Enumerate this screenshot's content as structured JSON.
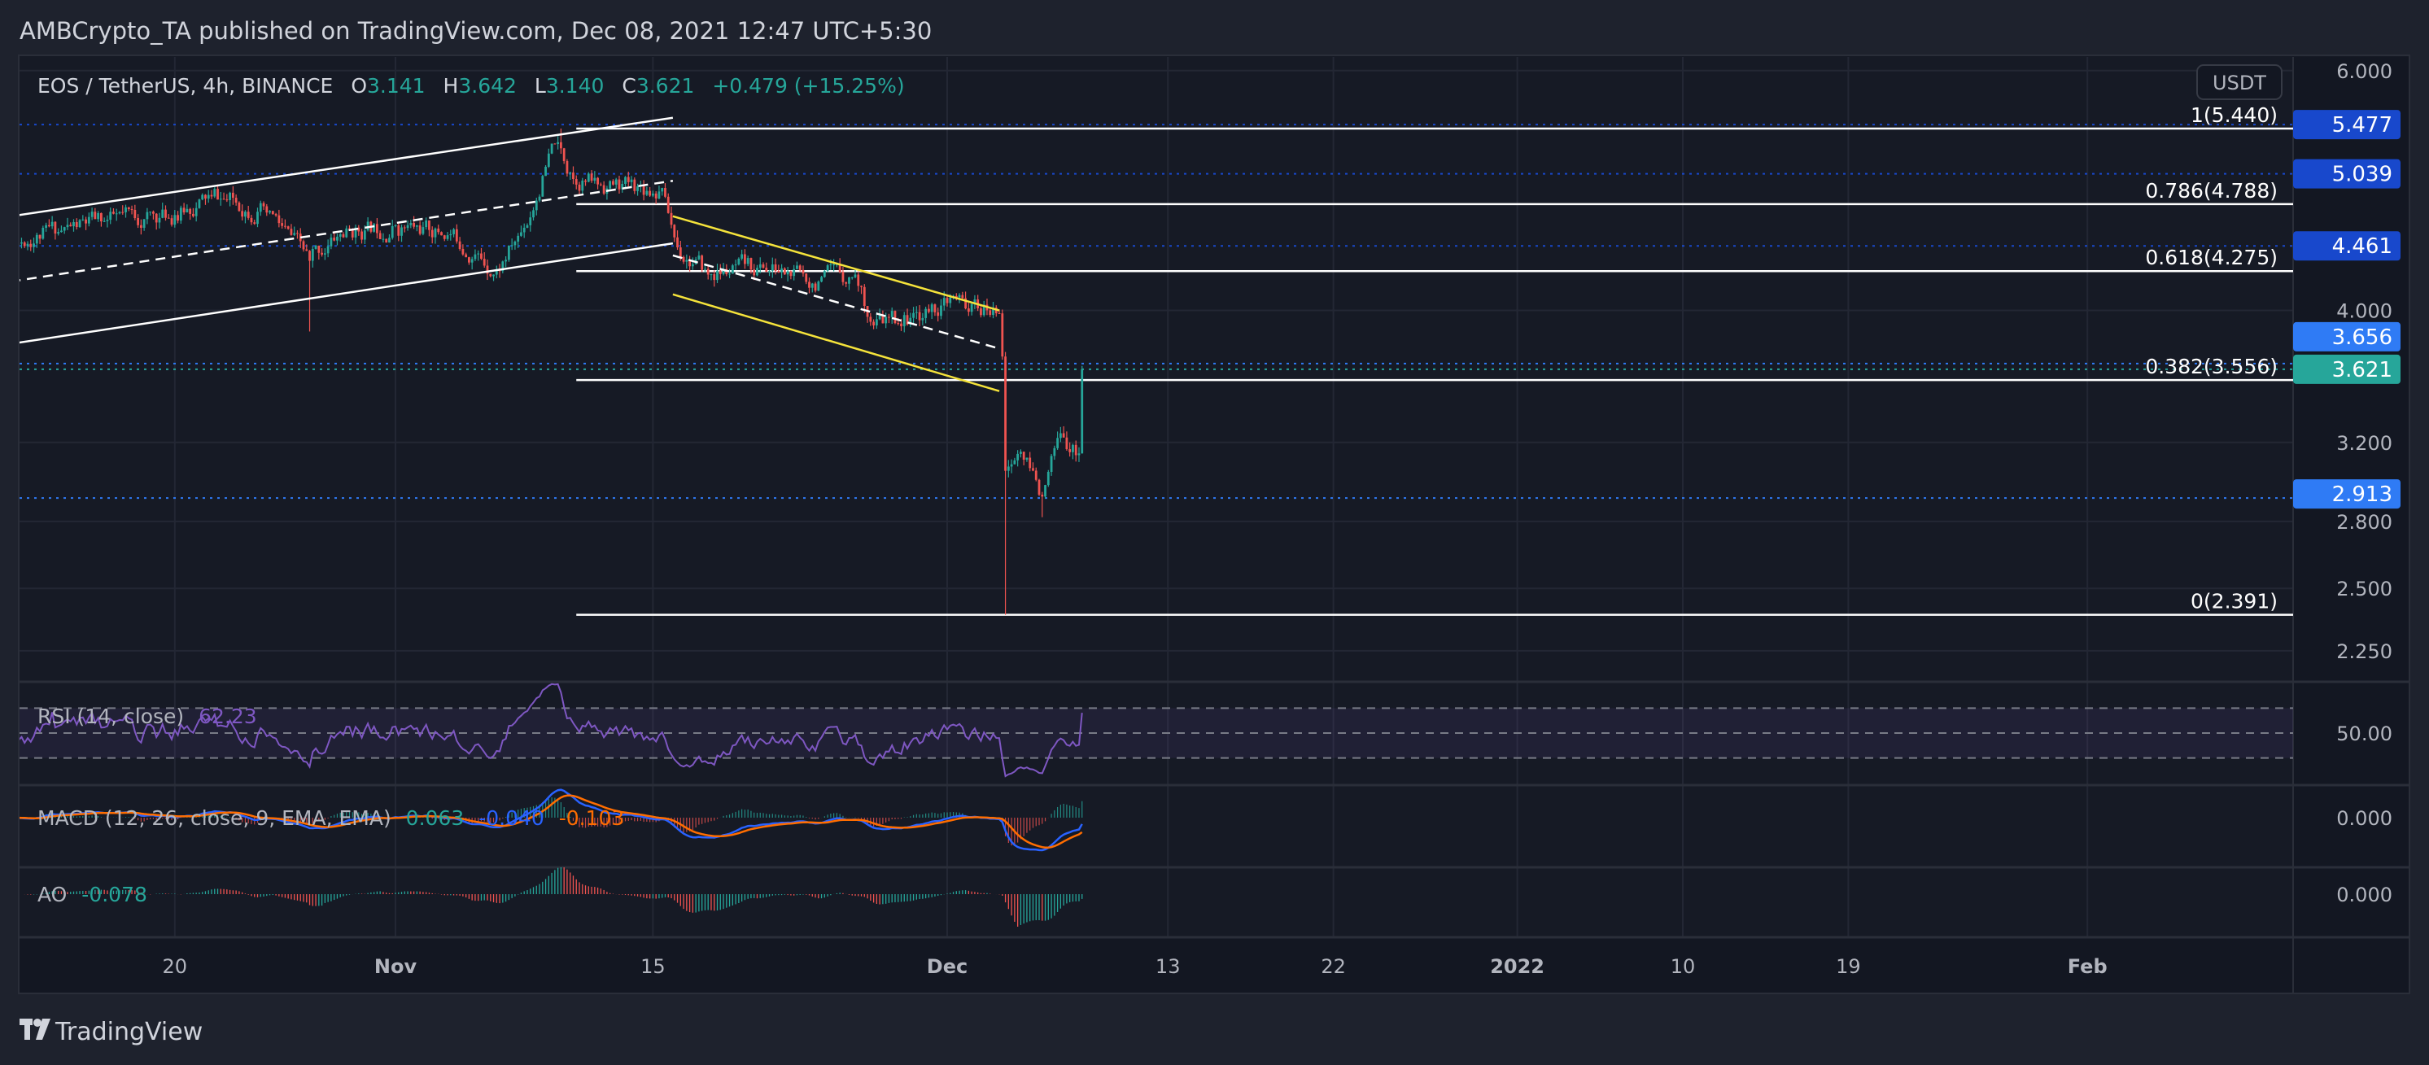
{
  "header": {
    "publisher_line": "AMBCrypto_TA published on TradingView.com, Dec 08, 2021 12:47 UTC+5:30"
  },
  "legend": {
    "symbol": "EOS / TetherUS, 4h, BINANCE",
    "o_label": "O",
    "o": "3.141",
    "h_label": "H",
    "h": "3.642",
    "l_label": "L",
    "l": "3.140",
    "c_label": "C",
    "c": "3.621",
    "change": "+0.479 (+15.25%)"
  },
  "currency_button": "USDT",
  "indicators": {
    "rsi": {
      "label": "RSI (14, close)",
      "value": "62.23",
      "axis": "50.00"
    },
    "macd": {
      "label": "MACD (12, 26, close, 9, EMA, EMA)",
      "hist": "0.063",
      "macd": "-0.040",
      "signal": "-0.103",
      "axis": "0.000"
    },
    "ao": {
      "label": "AO",
      "value": "-0.078",
      "axis": "0.000"
    }
  },
  "footer": {
    "logo_text": "TradingView"
  },
  "colors": {
    "up": "#26a69a",
    "down": "#ef5350",
    "alert_dark": "#1848cc",
    "alert_light": "#2f7bf5",
    "rsi": "#7e57c2",
    "macd": "#2962ff",
    "signal": "#ff6d00",
    "channel_yellow": "#f5e33b"
  },
  "chart_data": {
    "type": "candlestick",
    "symbol": "EOS/USDT",
    "interval": "4h",
    "scale": "log",
    "price_ticks": [
      "6.000",
      "4.000",
      "3.200",
      "2.800",
      "2.500",
      "2.250"
    ],
    "time_ticks": [
      {
        "label": "20",
        "date": "2021-10-20"
      },
      {
        "label": "Nov",
        "date": "2021-11-01"
      },
      {
        "label": "15",
        "date": "2021-11-15"
      },
      {
        "label": "Dec",
        "date": "2021-12-01"
      },
      {
        "label": "13",
        "date": "2021-12-13"
      },
      {
        "label": "22",
        "date": "2021-12-22"
      },
      {
        "label": "2022",
        "date": "2022-01-01"
      },
      {
        "label": "10",
        "date": "2022-01-10"
      },
      {
        "label": "19",
        "date": "2022-01-19"
      },
      {
        "label": "Feb",
        "date": "2022-02-01"
      }
    ],
    "waypoints": [
      {
        "t": "2021-10-11T00:00",
        "close": 4.5
      },
      {
        "t": "2021-10-16T00:00",
        "close": 4.65
      },
      {
        "t": "2021-10-20T00:00",
        "close": 4.7
      },
      {
        "t": "2021-10-22T00:00",
        "close": 4.85
      },
      {
        "t": "2021-10-25T00:00",
        "close": 4.72
      },
      {
        "t": "2021-10-27T08:00",
        "close": 4.35
      },
      {
        "t": "2021-10-29T00:00",
        "close": 4.55
      },
      {
        "t": "2021-11-01T00:00",
        "close": 4.62
      },
      {
        "t": "2021-11-04T00:00",
        "close": 4.55
      },
      {
        "t": "2021-11-06T12:00",
        "close": 4.28
      },
      {
        "t": "2021-11-08T00:00",
        "close": 4.6
      },
      {
        "t": "2021-11-09T16:00",
        "close": 5.3
      },
      {
        "t": "2021-11-10T12:00",
        "close": 5.05
      },
      {
        "t": "2021-11-12T00:00",
        "close": 4.95
      },
      {
        "t": "2021-11-15T12:00",
        "close": 4.92
      },
      {
        "t": "2021-11-16T08:00",
        "close": 4.45
      },
      {
        "t": "2021-11-18T00:00",
        "close": 4.25
      },
      {
        "t": "2021-11-21T00:00",
        "close": 4.3
      },
      {
        "t": "2021-11-24T00:00",
        "close": 4.2
      },
      {
        "t": "2021-11-26T00:00",
        "close": 4.25
      },
      {
        "t": "2021-11-27T00:00",
        "close": 3.9
      },
      {
        "t": "2021-11-29T00:00",
        "close": 3.95
      },
      {
        "t": "2021-12-01T00:00",
        "close": 4.05
      },
      {
        "t": "2021-12-03T20:00",
        "close": 3.98
      },
      {
        "t": "2021-12-04T00:00",
        "close": 3.7
      },
      {
        "t": "2021-12-04T04:00",
        "close": 3.05
      },
      {
        "t": "2021-12-05T00:00",
        "close": 3.15
      },
      {
        "t": "2021-12-06T04:00",
        "close": 2.92
      },
      {
        "t": "2021-12-07T04:00",
        "close": 3.25
      },
      {
        "t": "2021-12-08T04:00",
        "close": 3.141
      },
      {
        "t": "2021-12-08T08:00",
        "close": 3.621
      }
    ],
    "extremes": [
      {
        "t": "2021-10-27T08:00",
        "low": 3.86
      },
      {
        "t": "2021-11-10T00:00",
        "high": 5.44
      },
      {
        "t": "2021-12-04T04:00",
        "low": 2.391
      },
      {
        "t": "2021-12-06T04:00",
        "low": 2.82
      }
    ],
    "last_candle": {
      "open": 3.141,
      "high": 3.642,
      "low": 3.14,
      "close": 3.621
    },
    "fib_levels": [
      {
        "ratio": "1",
        "price": 5.44
      },
      {
        "ratio": "0.786",
        "price": 4.788
      },
      {
        "ratio": "0.618",
        "price": 4.275
      },
      {
        "ratio": "0.382",
        "price": 3.556
      },
      {
        "ratio": "0",
        "price": 2.391
      }
    ],
    "fib_start": "2021-11-10T20:00",
    "price_lines": [
      {
        "value": "5.477",
        "kind": "alert_dark"
      },
      {
        "value": "5.039",
        "kind": "alert_dark"
      },
      {
        "value": "4.461",
        "kind": "alert_dark"
      },
      {
        "value": "3.656",
        "kind": "alert_light"
      },
      {
        "value": "3.621",
        "kind": "up"
      },
      {
        "value": "2.913",
        "kind": "alert_light"
      }
    ],
    "trendlines": [
      {
        "name": "ascending-channel-upper",
        "color": "#ffffff",
        "dashed": false,
        "from": {
          "t": "2021-10-11T02:00",
          "p": 4.69
        },
        "to": {
          "t": "2021-11-16T02:00",
          "p": 5.54
        }
      },
      {
        "name": "ascending-channel-mid",
        "color": "#ffffff",
        "dashed": true,
        "from": {
          "t": "2021-10-11T02:00",
          "p": 4.2
        },
        "to": {
          "t": "2021-11-16T02:00",
          "p": 4.98
        }
      },
      {
        "name": "ascending-channel-lower",
        "color": "#ffffff",
        "dashed": false,
        "from": {
          "t": "2021-10-11T02:00",
          "p": 3.78
        },
        "to": {
          "t": "2021-11-16T02:00",
          "p": 4.48
        }
      },
      {
        "name": "descending-channel-upper",
        "color": "#f5e33b",
        "dashed": false,
        "from": {
          "t": "2021-11-16T02:00",
          "p": 4.69
        },
        "to": {
          "t": "2021-12-03T20:00",
          "p": 4.0
        }
      },
      {
        "name": "descending-channel-mid",
        "color": "#ffffff",
        "dashed": true,
        "from": {
          "t": "2021-11-16T02:00",
          "p": 4.39
        },
        "to": {
          "t": "2021-12-03T20:00",
          "p": 3.75
        }
      },
      {
        "name": "descending-channel-lower",
        "color": "#f5e33b",
        "dashed": false,
        "from": {
          "t": "2021-11-16T02:00",
          "p": 4.11
        },
        "to": {
          "t": "2021-12-03T20:00",
          "p": 3.49
        }
      }
    ]
  }
}
